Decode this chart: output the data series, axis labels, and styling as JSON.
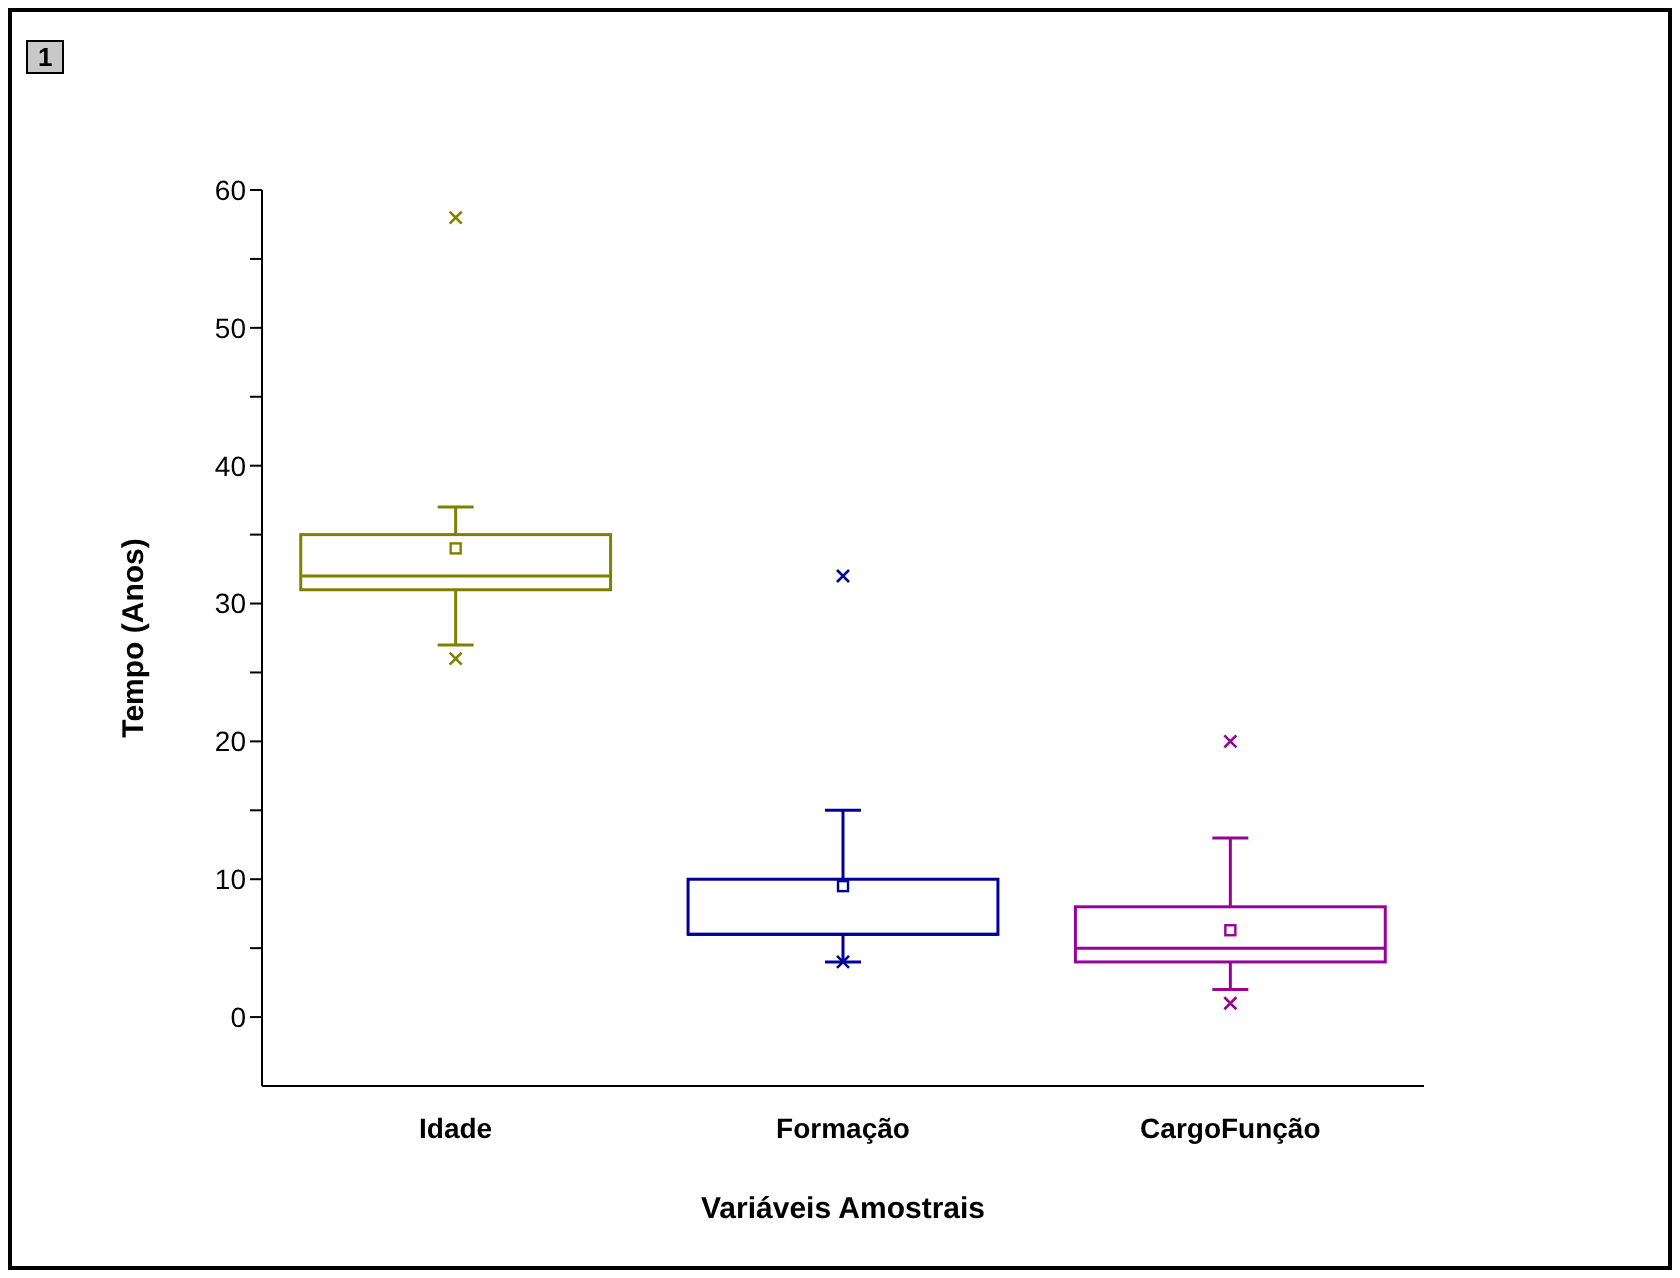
{
  "chart_data": {
    "type": "box",
    "xlabel": "Variáveis Amostrais",
    "ylabel": "Tempo (Anos)",
    "annotations": [
      "1"
    ],
    "categories": [
      "Idade",
      "Formação",
      "CargoFunção"
    ],
    "colors": [
      "#808000",
      "#000099",
      "#990099"
    ],
    "boxes": [
      {
        "low": 27,
        "q1": 31,
        "median": 32,
        "q3": 35,
        "high": 37,
        "mean": 34,
        "outliers": [
          26,
          58
        ]
      },
      {
        "low": 4,
        "q1": 6,
        "median": 6,
        "q3": 10,
        "high": 15,
        "mean": 9.5,
        "outliers": [
          4,
          32
        ]
      },
      {
        "low": 2,
        "q1": 4,
        "median": 5,
        "q3": 8,
        "high": 13,
        "mean": 6.3,
        "outliers": [
          1,
          20
        ]
      }
    ],
    "ylim": [
      -5,
      60
    ],
    "yticks": [
      0,
      {
        "value": 5,
        "label": null
      },
      10,
      {
        "value": 15,
        "label": null
      },
      20,
      {
        "value": 25,
        "label": null
      },
      30,
      {
        "value": 35,
        "label": null
      },
      40,
      {
        "value": 45,
        "label": null
      },
      50,
      {
        "value": 55,
        "label": null
      },
      60
    ],
    "grid": false
  }
}
